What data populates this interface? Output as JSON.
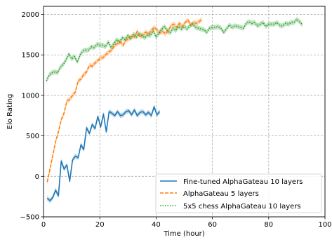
{
  "chart_data": {
    "type": "line",
    "title": "",
    "xlabel": "Time (hour)",
    "ylabel": "Elo Rating",
    "xlim": [
      0,
      100
    ],
    "ylim": [
      -500,
      2100
    ],
    "xticks": [
      0,
      20,
      40,
      60,
      80,
      100
    ],
    "yticks": [
      -500,
      0,
      500,
      1000,
      1500,
      2000
    ],
    "xtick_labels": [
      "0",
      "20",
      "40",
      "60",
      "80",
      "100"
    ],
    "ytick_labels": [
      "−500",
      "0",
      "500",
      "1000",
      "1500",
      "2000"
    ],
    "grid": true,
    "legend_position": "lower-right",
    "series": [
      {
        "name": "Fine-tuned AlphaGateau 10 layers",
        "color": "#1f77b4",
        "linestyle": "solid",
        "x": [
          1.3,
          2.3,
          3.3,
          4.3,
          5.3,
          6.3,
          7.3,
          8.3,
          9.3,
          10.3,
          11.3,
          12.3,
          13.3,
          14.3,
          15.3,
          16.3,
          17.3,
          18.3,
          19.3,
          20.3,
          21.3,
          22.3,
          23.3,
          24.3,
          25.3,
          26.3,
          27.3,
          28.3,
          29.3,
          30.3,
          31.3,
          32.3,
          33.3,
          34.3,
          35.3,
          36.3,
          37.3,
          38.3,
          39.3,
          40.3,
          41.3
        ],
        "y": [
          -270,
          -300,
          -260,
          -170,
          -240,
          190,
          90,
          140,
          -60,
          200,
          250,
          230,
          390,
          330,
          600,
          530,
          640,
          590,
          740,
          610,
          770,
          550,
          800,
          780,
          750,
          800,
          750,
          760,
          800,
          810,
          760,
          820,
          750,
          790,
          800,
          760,
          790,
          750,
          860,
          760,
          800
        ]
      },
      {
        "name": "AlphaGateau 5 layers",
        "color": "#ff7f0e",
        "linestyle": "dashed",
        "x": [
          1.3,
          2.3,
          3.3,
          4.3,
          5.3,
          6.3,
          7.3,
          8.3,
          9.3,
          10.3,
          11.3,
          12.3,
          13.3,
          14.3,
          15.3,
          16.3,
          17.3,
          18.3,
          19.3,
          20.3,
          21.3,
          22.3,
          23.3,
          24.3,
          25.3,
          26.3,
          27.3,
          28.3,
          29.3,
          30.3,
          31.3,
          32.3,
          33.3,
          34.3,
          35.3,
          36.3,
          37.3,
          38.3,
          39.3,
          40.3,
          41.3,
          42.3,
          43.3,
          44.3,
          45.3,
          46.3,
          47.3,
          48.3,
          49.3,
          50.3,
          51.3,
          52.3,
          53.3,
          54.3,
          55.3,
          56.3
        ],
        "y": [
          -70,
          90,
          260,
          430,
          550,
          700,
          780,
          930,
          950,
          1000,
          1040,
          1180,
          1200,
          1260,
          1290,
          1370,
          1360,
          1400,
          1430,
          1460,
          1470,
          1510,
          1540,
          1560,
          1620,
          1640,
          1660,
          1620,
          1680,
          1700,
          1730,
          1720,
          1790,
          1720,
          1750,
          1780,
          1760,
          1800,
          1840,
          1810,
          1770,
          1790,
          1760,
          1800,
          1860,
          1880,
          1840,
          1890,
          1850,
          1900,
          1930,
          1870,
          1900,
          1890,
          1910,
          1940
        ]
      },
      {
        "name": "5x5 chess AlphaGateau 10 layers",
        "color": "#2ca02c",
        "linestyle": "dotted",
        "x": [
          1,
          2,
          3,
          4,
          5,
          6,
          7,
          8,
          9,
          10,
          11,
          12,
          13,
          14,
          15,
          16,
          17,
          18,
          19,
          20,
          21,
          22,
          23,
          24,
          25,
          26,
          27,
          28,
          29,
          30,
          31,
          32,
          33,
          34,
          35,
          36,
          37,
          38,
          39,
          40,
          41,
          42,
          43,
          44,
          45,
          46,
          47,
          48,
          49,
          50,
          51,
          52,
          53,
          54,
          55,
          56,
          57,
          58,
          59,
          60,
          61,
          62,
          63,
          64,
          65,
          66,
          67,
          68,
          69,
          70,
          71,
          72,
          73,
          74,
          75,
          76,
          77,
          78,
          79,
          80,
          81,
          82,
          83,
          84,
          85,
          86,
          87,
          88,
          89,
          90,
          91,
          92
        ],
        "y": [
          1180,
          1250,
          1280,
          1290,
          1280,
          1350,
          1380,
          1440,
          1510,
          1450,
          1480,
          1410,
          1500,
          1550,
          1560,
          1560,
          1600,
          1590,
          1630,
          1620,
          1620,
          1600,
          1660,
          1590,
          1640,
          1690,
          1660,
          1710,
          1690,
          1740,
          1700,
          1760,
          1720,
          1760,
          1740,
          1710,
          1750,
          1740,
          1800,
          1720,
          1770,
          1820,
          1850,
          1800,
          1770,
          1830,
          1800,
          1850,
          1820,
          1850,
          1820,
          1860,
          1880,
          1840,
          1830,
          1820,
          1810,
          1780,
          1830,
          1840,
          1840,
          1850,
          1830,
          1780,
          1820,
          1870,
          1840,
          1860,
          1850,
          1840,
          1830,
          1890,
          1910,
          1890,
          1900,
          1860,
          1880,
          1900,
          1850,
          1880,
          1880,
          1880,
          1900,
          1860,
          1860,
          1890,
          1880,
          1900,
          1900,
          1940,
          1910,
          1870
        ]
      }
    ]
  }
}
